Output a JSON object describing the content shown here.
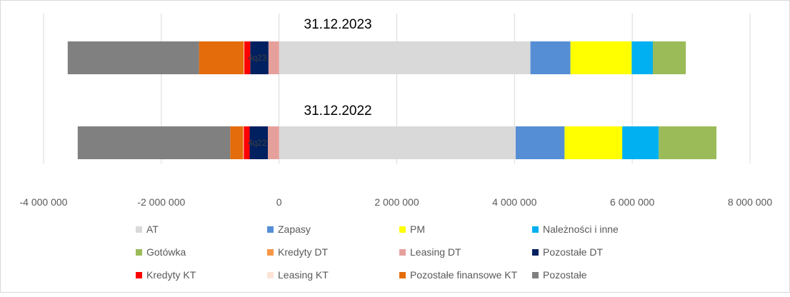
{
  "chart_data": {
    "type": "bar",
    "orientation": "horizontal",
    "stacked": true,
    "xlim": [
      -4000000,
      8000000
    ],
    "x_ticks": [
      -4000000,
      -2000000,
      0,
      2000000,
      4000000,
      6000000,
      8000000
    ],
    "x_tick_labels": [
      "-4 000 000",
      "-2 000 000",
      "0",
      "2 000 000",
      "4 000 000",
      "6 000 000",
      "8 000 000"
    ],
    "grid": true,
    "legend_position": "bottom",
    "categories": [
      {
        "period": "31.12.2023",
        "inner_label": "4q23"
      },
      {
        "period": "31.12.2022",
        "inner_label": "4q22"
      }
    ],
    "series": [
      {
        "name": "AT",
        "color": "#D9D9D9",
        "values": [
          4270000,
          4020000
        ]
      },
      {
        "name": "Zapasy",
        "color": "#558ED5",
        "values": [
          680000,
          830000
        ]
      },
      {
        "name": "PM",
        "color": "#FFFF00",
        "values": [
          1040000,
          980000
        ]
      },
      {
        "name": "Należności i inne",
        "color": "#00B0F0",
        "values": [
          360000,
          620000
        ]
      },
      {
        "name": "Gotówka",
        "color": "#9BBB59",
        "values": [
          560000,
          980000
        ]
      },
      {
        "name": "Kredyty DT",
        "color": "#F79646",
        "values": [
          0,
          0
        ]
      },
      {
        "name": "Leasing DT",
        "color": "#E6A09C",
        "values": [
          -180000,
          -190000
        ]
      },
      {
        "name": "Pozostałe DT",
        "color": "#002060",
        "values": [
          -310000,
          -310000
        ]
      },
      {
        "name": "Kredyty KT",
        "color": "#FF0000",
        "values": [
          -100000,
          -100000
        ]
      },
      {
        "name": "Leasing KT",
        "color": "#FCE4D6",
        "values": [
          -10000,
          -10000
        ]
      },
      {
        "name": "Pozostałe finansowe KT",
        "color": "#E46C0A",
        "values": [
          -760000,
          -220000
        ]
      },
      {
        "name": "Pozostałe",
        "color": "#808080",
        "values": [
          -2230000,
          -2590000
        ]
      }
    ]
  }
}
